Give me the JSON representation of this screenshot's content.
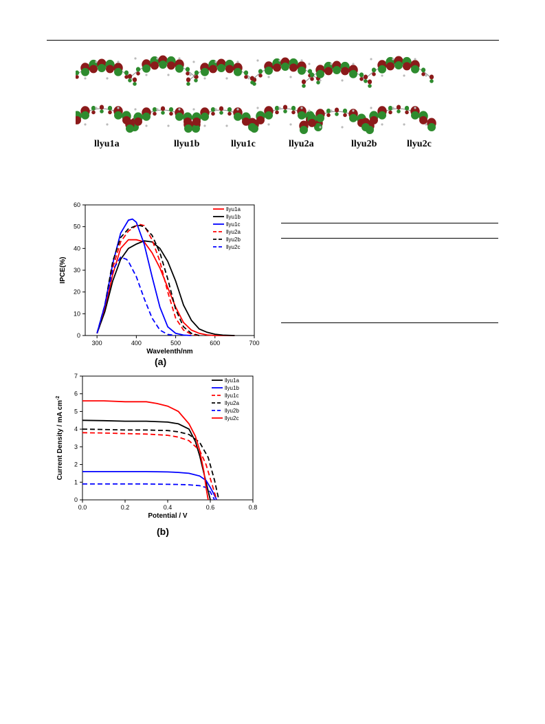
{
  "molecules": [
    "llyu1a",
    "llyu1b",
    "llyu1c",
    "llyu2a",
    "llyu2b",
    "llyu2c"
  ],
  "orbital_colors": {
    "positive": "#8b1a1a",
    "negative": "#2e8b2e"
  },
  "figure_captions": {
    "a": "(a)",
    "b": "(b)"
  },
  "chart_data": [
    {
      "type": "line",
      "panel": "(a)",
      "xlabel": "Wavelenth/nm",
      "ylabel": "IPCE(%)",
      "xlim": [
        270,
        700
      ],
      "ylim": [
        0,
        60
      ],
      "xticks": [
        300,
        400,
        500,
        600,
        700
      ],
      "yticks": [
        0,
        10,
        20,
        30,
        40,
        50,
        60
      ],
      "legend_position": "top-right",
      "series": [
        {
          "name": "llyu1a",
          "color": "#ff0000",
          "dash": false,
          "x": [
            300,
            320,
            340,
            360,
            380,
            400,
            420,
            440,
            460,
            480,
            500,
            520,
            540,
            560,
            580,
            600,
            650
          ],
          "y": [
            1,
            12,
            28,
            40,
            44,
            44,
            43,
            38,
            31,
            22,
            13,
            6,
            2.5,
            1,
            0.3,
            0,
            0
          ]
        },
        {
          "name": "llyu1b",
          "color": "#000000",
          "dash": false,
          "x": [
            300,
            320,
            340,
            360,
            380,
            400,
            420,
            440,
            460,
            480,
            500,
            520,
            540,
            560,
            580,
            600,
            620,
            650
          ],
          "y": [
            1,
            11,
            25,
            35,
            40,
            42,
            43.5,
            43,
            40,
            34,
            25,
            14,
            7,
            3,
            1.5,
            0.6,
            0.2,
            0
          ]
        },
        {
          "name": "llyu1c",
          "color": "#0000ff",
          "dash": false,
          "x": [
            300,
            320,
            340,
            360,
            380,
            390,
            400,
            420,
            440,
            460,
            480,
            500,
            520,
            540
          ],
          "y": [
            1,
            14,
            33,
            47,
            53,
            53.5,
            52,
            42,
            27,
            13,
            4,
            1,
            0.2,
            0
          ]
        },
        {
          "name": "llyu2a",
          "color": "#ff0000",
          "dash": true,
          "x": [
            300,
            320,
            340,
            360,
            380,
            400,
            410,
            420,
            440,
            460,
            480,
            500,
            520,
            540,
            560
          ],
          "y": [
            1,
            13,
            31,
            43,
            48,
            50.5,
            51,
            50.5,
            44,
            34,
            20,
            8,
            2.5,
            0.6,
            0
          ]
        },
        {
          "name": "llyu2b",
          "color": "#000000",
          "dash": true,
          "x": [
            300,
            320,
            340,
            360,
            380,
            400,
            410,
            420,
            440,
            460,
            480,
            500,
            520,
            540,
            560
          ],
          "y": [
            1,
            14,
            34,
            45,
            49,
            50.5,
            50.5,
            50,
            46,
            38,
            26,
            12,
            4,
            1,
            0
          ]
        },
        {
          "name": "llyu2c",
          "color": "#0000ff",
          "dash": true,
          "x": [
            300,
            320,
            340,
            360,
            375,
            380,
            400,
            420,
            440,
            460,
            480,
            500
          ],
          "y": [
            1,
            14,
            30,
            36,
            35,
            34,
            27,
            17,
            8,
            2.5,
            0.5,
            0
          ]
        }
      ]
    },
    {
      "type": "line",
      "panel": "(b)",
      "xlabel": "Potential / V",
      "ylabel": "Current Density / mA cm",
      "ylabel_superscript": "-2",
      "xlim": [
        0,
        0.8
      ],
      "ylim": [
        0,
        7
      ],
      "xticks": [
        0.0,
        0.2,
        0.4,
        0.6,
        0.8
      ],
      "yticks": [
        0,
        1,
        2,
        3,
        4,
        5,
        6,
        7
      ],
      "legend_position": "top-right",
      "series": [
        {
          "name": "llyu1a",
          "color": "#000000",
          "dash": false,
          "x": [
            0,
            0.1,
            0.2,
            0.3,
            0.4,
            0.45,
            0.5,
            0.53,
            0.55,
            0.57,
            0.59,
            0.6
          ],
          "y": [
            4.5,
            4.48,
            4.45,
            4.45,
            4.4,
            4.3,
            4.0,
            3.3,
            2.5,
            1.5,
            0.5,
            0
          ]
        },
        {
          "name": "llyu1b",
          "color": "#0000ff",
          "dash": false,
          "x": [
            0,
            0.1,
            0.2,
            0.3,
            0.4,
            0.45,
            0.5,
            0.55,
            0.58,
            0.6,
            0.62,
            0.63
          ],
          "y": [
            1.6,
            1.6,
            1.6,
            1.6,
            1.58,
            1.55,
            1.5,
            1.35,
            1.1,
            0.7,
            0.25,
            0
          ]
        },
        {
          "name": "llyu1c",
          "color": "#ff0000",
          "dash": true,
          "x": [
            0,
            0.1,
            0.2,
            0.3,
            0.4,
            0.45,
            0.5,
            0.55,
            0.58,
            0.61,
            0.63
          ],
          "y": [
            3.8,
            3.78,
            3.75,
            3.72,
            3.65,
            3.55,
            3.35,
            2.8,
            2.0,
            0.8,
            0
          ]
        },
        {
          "name": "llyu2a",
          "color": "#000000",
          "dash": true,
          "x": [
            0,
            0.1,
            0.2,
            0.3,
            0.4,
            0.45,
            0.5,
            0.55,
            0.59,
            0.62,
            0.64
          ],
          "y": [
            4.0,
            3.98,
            3.95,
            3.95,
            3.92,
            3.85,
            3.7,
            3.25,
            2.4,
            1.1,
            0
          ]
        },
        {
          "name": "llyu2b",
          "color": "#0000ff",
          "dash": true,
          "x": [
            0,
            0.1,
            0.2,
            0.3,
            0.4,
            0.45,
            0.5,
            0.55,
            0.58,
            0.6,
            0.62
          ],
          "y": [
            0.9,
            0.9,
            0.9,
            0.9,
            0.88,
            0.87,
            0.85,
            0.8,
            0.7,
            0.45,
            0
          ]
        },
        {
          "name": "llyu2c",
          "color": "#ff0000",
          "dash": false,
          "x": [
            0,
            0.1,
            0.2,
            0.3,
            0.35,
            0.4,
            0.45,
            0.5,
            0.53,
            0.55,
            0.57,
            0.58,
            0.59
          ],
          "y": [
            5.6,
            5.6,
            5.55,
            5.55,
            5.45,
            5.3,
            5.0,
            4.3,
            3.6,
            2.8,
            1.6,
            0.7,
            0
          ]
        }
      ]
    }
  ]
}
